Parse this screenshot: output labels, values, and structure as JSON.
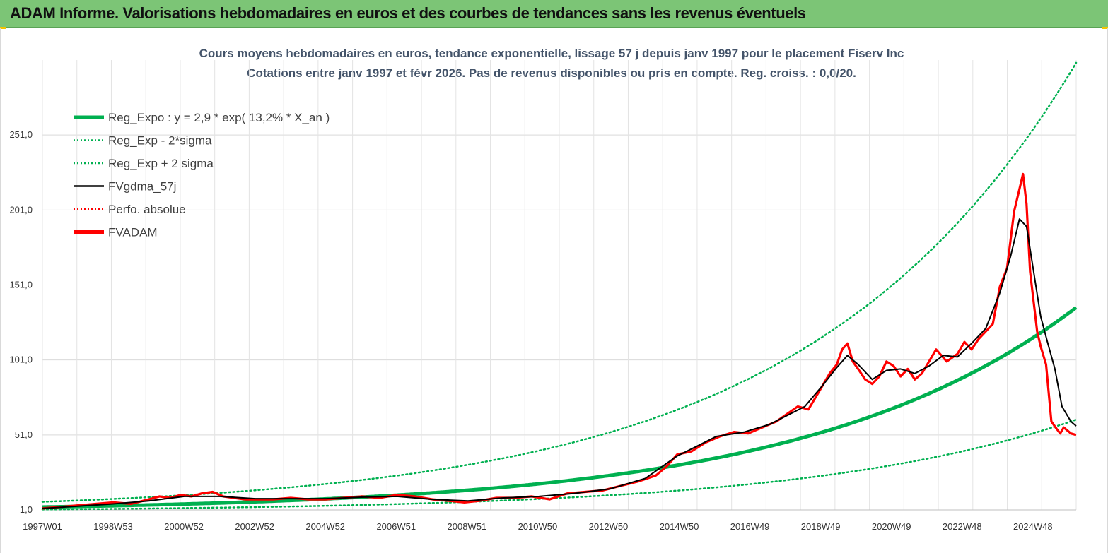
{
  "banner": {
    "title": "ADAM Informe. Valorisations hebdomadaires en euros et des courbes de tendances sans les revenus éventuels"
  },
  "colors": {
    "banner_bg": "#7cc576",
    "trend": "#00b050",
    "smooth": "#000000",
    "price": "#ff0000",
    "subtitle": "#44546a"
  },
  "chart_data": {
    "type": "line",
    "title": "Cours moyens hebdomadaires en euros, tendance exponentielle, lissage 57 j depuis janv 1997 pour le placement Fiserv Inc",
    "subtitle": "Cotations entre janv 1997 et févr 2026. Pas de revenus disponibles ou pris en compte. Reg. croiss. : 0,0/20.",
    "xlabel": "",
    "ylabel": "",
    "x_tick_labels": [
      "1997W01",
      "1998W53",
      "2000W52",
      "2002W52",
      "2004W52",
      "2006W51",
      "2008W51",
      "2010W50",
      "2012W50",
      "2014W50",
      "2016W49",
      "2018W49",
      "2020W49",
      "2022W48",
      "2024W48"
    ],
    "y_tick_labels": [
      "1,0",
      "51,0",
      "101,0",
      "151,0",
      "201,0",
      "251,0"
    ],
    "ylim": [
      1,
      301
    ],
    "xlim": [
      1997.0,
      2026.15
    ],
    "grid": true,
    "legend_position": "top-left",
    "legend": [
      {
        "label": "Reg_Expo : y = 2,9 * exp( 13,2% *  X_an )",
        "style": "thick-solid",
        "color": "#00b050"
      },
      {
        "label": "Reg_Exp - 2*sigma",
        "style": "dotted",
        "color": "#00b050"
      },
      {
        "label": "Reg_Exp + 2 sigma",
        "style": "dotted",
        "color": "#00b050"
      },
      {
        "label": "FVgdma_57j",
        "style": "solid",
        "color": "#000000"
      },
      {
        "label": "Perfo. absolue",
        "style": "dotted",
        "color": "#ff0000"
      },
      {
        "label": "FVADAM",
        "style": "thick-solid",
        "color": "#ff0000"
      }
    ],
    "series": [
      {
        "name": "FVADAM",
        "x": [
          1997.0,
          1997.5,
          1998.0,
          1998.5,
          1999.0,
          1999.5,
          2000.0,
          2000.3,
          2000.6,
          2000.9,
          2001.2,
          2001.5,
          2001.8,
          2002.1,
          2002.4,
          2002.7,
          2003.0,
          2003.5,
          2004.0,
          2004.5,
          2005.0,
          2005.5,
          2006.0,
          2006.5,
          2007.0,
          2007.5,
          2008.0,
          2008.5,
          2008.9,
          2009.3,
          2009.8,
          2010.3,
          2010.8,
          2011.3,
          2011.8,
          2012.3,
          2012.8,
          2013.3,
          2013.8,
          2014.3,
          2014.6,
          2014.9,
          2015.3,
          2015.7,
          2016.1,
          2016.5,
          2016.9,
          2017.3,
          2017.7,
          2018.0,
          2018.3,
          2018.6,
          2018.9,
          2019.2,
          2019.4,
          2019.55,
          2019.7,
          2019.85,
          2020.0,
          2020.2,
          2020.4,
          2020.6,
          2020.8,
          2021.0,
          2021.2,
          2021.4,
          2021.6,
          2021.8,
          2022.0,
          2022.2,
          2022.5,
          2022.8,
          2023.0,
          2023.2,
          2023.4,
          2023.6,
          2023.8,
          2024.0,
          2024.2,
          2024.4,
          2024.55,
          2024.65,
          2024.75,
          2024.85,
          2024.95,
          2025.05,
          2025.15,
          2025.3,
          2025.45,
          2025.6,
          2025.7,
          2025.8,
          2025.9,
          2026.0,
          2026.15
        ],
        "y": [
          2,
          3,
          4,
          5,
          6,
          5,
          8,
          10,
          9,
          11,
          10,
          12,
          13,
          10,
          9,
          8,
          8,
          8,
          9,
          8,
          8,
          9,
          10,
          9,
          11,
          10,
          8,
          7,
          6,
          7,
          9,
          9,
          10,
          8,
          12,
          13,
          14,
          17,
          20,
          24,
          30,
          38,
          40,
          46,
          50,
          53,
          52,
          56,
          60,
          65,
          70,
          68,
          80,
          92,
          98,
          108,
          112,
          100,
          95,
          88,
          85,
          90,
          100,
          97,
          90,
          95,
          88,
          92,
          100,
          108,
          100,
          105,
          113,
          108,
          115,
          120,
          125,
          150,
          162,
          200,
          215,
          225,
          205,
          160,
          140,
          120,
          110,
          98,
          60,
          55,
          52,
          56,
          54,
          52,
          51
        ]
      },
      {
        "name": "FVgdma_57j",
        "x": [
          1997.0,
          1998.0,
          1999.0,
          2000.0,
          2001.0,
          2002.0,
          2003.0,
          2004.0,
          2005.0,
          2006.0,
          2007.0,
          2008.0,
          2009.0,
          2010.0,
          2011.0,
          2012.0,
          2013.0,
          2014.0,
          2014.9,
          2015.5,
          2016.0,
          2016.8,
          2017.5,
          2018.0,
          2018.5,
          2019.0,
          2019.4,
          2019.7,
          2020.0,
          2020.4,
          2020.8,
          2021.2,
          2021.6,
          2022.0,
          2022.4,
          2022.8,
          2023.2,
          2023.6,
          2024.0,
          2024.3,
          2024.55,
          2024.75,
          2024.95,
          2025.15,
          2025.35,
          2025.55,
          2025.75,
          2026.0,
          2026.15
        ],
        "y": [
          2,
          3.5,
          5,
          7,
          10,
          10,
          8.5,
          8.5,
          8.5,
          9.5,
          10,
          8,
          7,
          9,
          10,
          12,
          15,
          22,
          37,
          44,
          50,
          53,
          58,
          64,
          70,
          84,
          96,
          104,
          98,
          88,
          94,
          95,
          92,
          97,
          104,
          103,
          112,
          122,
          146,
          170,
          195,
          190,
          160,
          130,
          112,
          95,
          70,
          60,
          57
        ]
      }
    ],
    "trend": {
      "name": "Reg_Expo : y = 2,9 * exp( 13,2% *  X_an )",
      "a": 2.9,
      "b": 0.132,
      "start_year": 1997,
      "band_factor_low": 0.45,
      "band_factor_high": 2.2
    }
  }
}
